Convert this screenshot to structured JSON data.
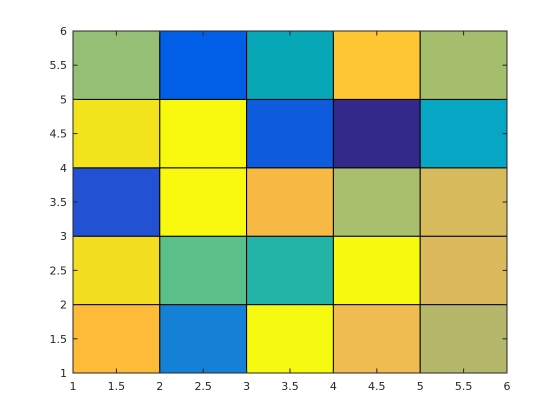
{
  "chart_data": {
    "type": "heatmap",
    "title": "",
    "xlabel": "",
    "ylabel": "",
    "xlim": [
      1,
      6
    ],
    "ylim": [
      1,
      6
    ],
    "x_edges": [
      1,
      2,
      3,
      4,
      5,
      6
    ],
    "y_edges": [
      1,
      2,
      3,
      4,
      5,
      6
    ],
    "x_ticks": [
      1,
      1.5,
      2,
      2.5,
      3,
      3.5,
      4,
      4.5,
      5,
      5.5,
      6
    ],
    "y_ticks": [
      1,
      1.5,
      2,
      2.5,
      3,
      3.5,
      4,
      4.5,
      5,
      5.5,
      6
    ],
    "x_tick_labels": [
      "1",
      "1.5",
      "2",
      "2.5",
      "3",
      "3.5",
      "4",
      "4.5",
      "5",
      "5.5",
      "6"
    ],
    "y_tick_labels": [
      "1",
      "1.5",
      "2",
      "2.5",
      "3",
      "3.5",
      "4",
      "4.5",
      "5",
      "5.5",
      "6"
    ],
    "grid": false,
    "colormap": "parula",
    "rows_bottom_to_top": [
      [
        "#fdbb39",
        "#1581d6",
        "#f5f910",
        "#f0bb50",
        "#b5b86a"
      ],
      [
        "#f2dd21",
        "#5bbf8b",
        "#22b4a7",
        "#f7fa0f",
        "#dbb95c"
      ],
      [
        "#2252d3",
        "#f8f90f",
        "#f8b944",
        "#a9bf6d",
        "#d7bb5d"
      ],
      [
        "#f2e31c",
        "#f8f90f",
        "#0e5bdd",
        "#32298a",
        "#06a6c4"
      ],
      [
        "#94bf74",
        "#005fe6",
        "#07a7b8",
        "#ffc634",
        "#a4be6d"
      ]
    ]
  }
}
